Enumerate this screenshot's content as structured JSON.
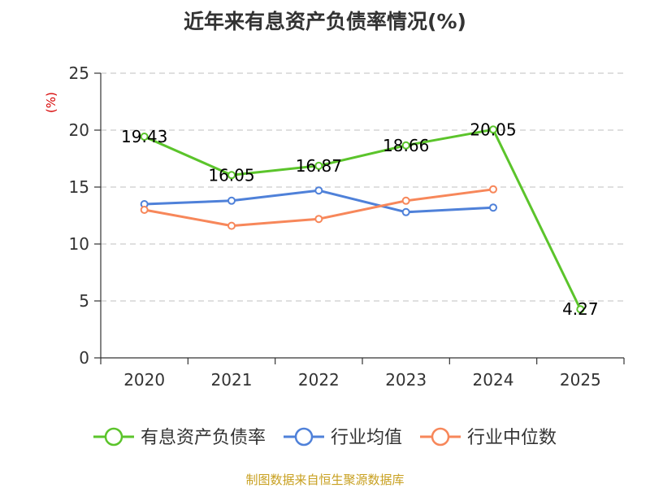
{
  "chart_data": {
    "type": "line",
    "title": "近年来有息资产负债率情况(%)",
    "ylabel": "(%)",
    "xlabel": "",
    "categories": [
      "2020",
      "2021",
      "2022",
      "2023",
      "2024",
      "2025"
    ],
    "ylim": [
      0,
      25
    ],
    "yticks": [
      0,
      5,
      10,
      15,
      20,
      25
    ],
    "grid": true,
    "legend_position": "bottom",
    "series": [
      {
        "name": "有息资产负债率",
        "color": "#5bc42b",
        "values": [
          19.43,
          16.05,
          16.87,
          18.66,
          20.05,
          4.27
        ],
        "labels": [
          "19.43",
          "16.05",
          "16.87",
          "18.66",
          "20.05",
          "4.27"
        ]
      },
      {
        "name": "行业均值",
        "color": "#4f81d9",
        "values": [
          13.5,
          13.8,
          14.7,
          12.8,
          13.2,
          null
        ]
      },
      {
        "name": "行业中位数",
        "color": "#f7875a",
        "values": [
          13.0,
          11.6,
          12.2,
          13.8,
          14.8,
          null
        ]
      }
    ],
    "source": "制图数据来自恒生聚源数据库"
  }
}
